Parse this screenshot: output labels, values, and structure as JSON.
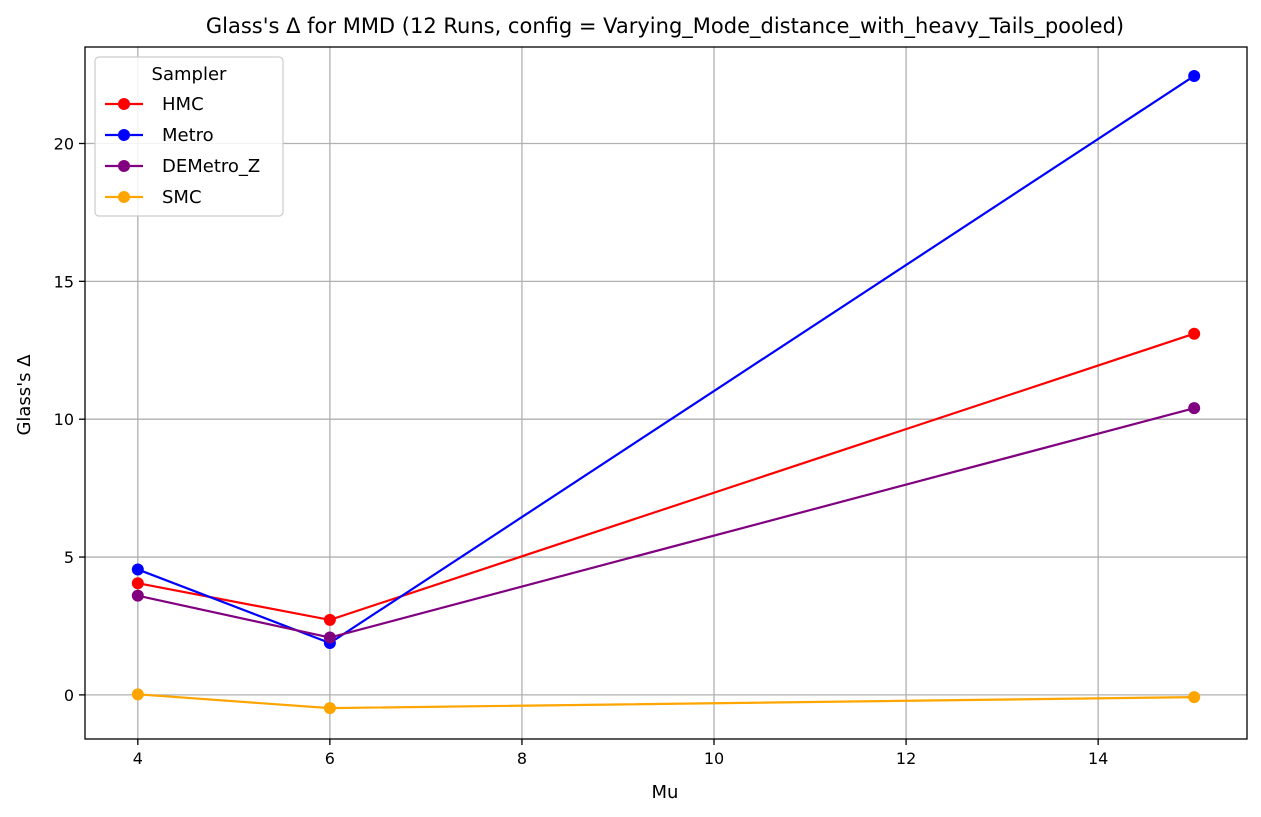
{
  "chart_data": {
    "type": "line",
    "title": "Glass's Δ for MMD (12 Runs, config = Varying_Mode_distance_with_heavy_Tails_pooled)",
    "xlabel": "Mu",
    "ylabel": "Glass's Δ",
    "x": [
      4,
      6,
      15
    ],
    "xlim": [
      3.45,
      15.55
    ],
    "ylim": [
      -1.6,
      23.5
    ],
    "xticks": [
      4,
      6,
      8,
      10,
      12,
      14
    ],
    "yticks": [
      0,
      5,
      10,
      15,
      20
    ],
    "grid": true,
    "legend": {
      "title": "Sampler",
      "placement": "top-left"
    },
    "series": [
      {
        "name": "HMC",
        "color": "#ff0000",
        "values": [
          4.05,
          2.72,
          13.1
        ]
      },
      {
        "name": "Metro",
        "color": "#0000ff",
        "values": [
          4.55,
          1.88,
          22.45
        ]
      },
      {
        "name": "DEMetro_Z",
        "color": "#800080",
        "values": [
          3.6,
          2.08,
          10.4
        ]
      },
      {
        "name": "SMC",
        "color": "#ffa500",
        "values": [
          0.02,
          -0.48,
          -0.08
        ]
      }
    ]
  }
}
